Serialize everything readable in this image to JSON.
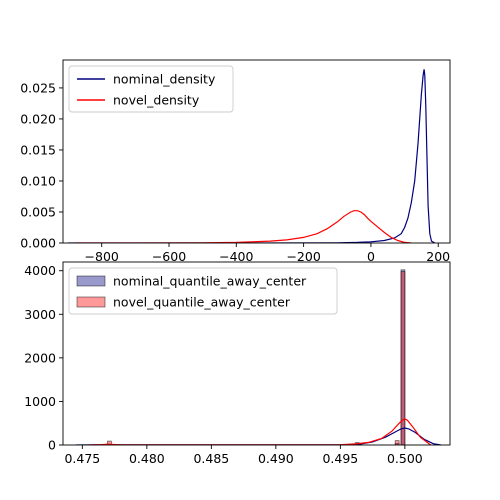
{
  "chart_data": [
    {
      "type": "line",
      "title": "",
      "xlabel": "",
      "ylabel": "",
      "xlim": [
        -915,
        235
      ],
      "ylim": [
        0,
        0.0295
      ],
      "xticks": [
        -800,
        -600,
        -400,
        -200,
        0,
        200
      ],
      "xtick_labels": [
        "−800",
        "−600",
        "−400",
        "−200",
        "0",
        "200"
      ],
      "yticks": [
        0,
        0.005,
        0.01,
        0.015,
        0.02,
        0.025
      ],
      "ytick_labels": [
        "0.000",
        "0.005",
        "0.010",
        "0.015",
        "0.020",
        "0.025"
      ],
      "grid": false,
      "legend": "upper-left",
      "series": [
        {
          "name": "nominal_density",
          "color": "#00007f",
          "x": [
            -900,
            -300,
            -100,
            -40,
            0,
            40,
            70,
            90,
            100,
            110,
            120,
            130,
            140,
            145,
            150,
            155,
            158,
            160,
            163,
            166,
            170,
            175,
            180,
            190
          ],
          "y": [
            0,
            0,
            3e-05,
            0.0001,
            0.0002,
            0.0004,
            0.0008,
            0.0015,
            0.0025,
            0.004,
            0.0065,
            0.01,
            0.016,
            0.02,
            0.024,
            0.027,
            0.028,
            0.027,
            0.022,
            0.015,
            0.006,
            0.0015,
            0.0003,
            0
          ]
        },
        {
          "name": "novel_density",
          "color": "#ff0000",
          "x": [
            -880,
            -700,
            -500,
            -400,
            -300,
            -250,
            -200,
            -160,
            -130,
            -100,
            -80,
            -60,
            -50,
            -40,
            -30,
            -20,
            -10,
            0,
            20,
            40,
            60,
            80,
            100,
            120
          ],
          "y": [
            0,
            0,
            3e-05,
            0.0001,
            0.0003,
            0.0005,
            0.0009,
            0.0015,
            0.0023,
            0.0034,
            0.0043,
            0.005,
            0.0052,
            0.0052,
            0.005,
            0.0046,
            0.004,
            0.0035,
            0.0026,
            0.0017,
            0.0009,
            0.0004,
            0.0001,
            0
          ]
        }
      ]
    },
    {
      "type": "bar",
      "title": "",
      "xlabel": "",
      "ylabel": "",
      "xlim": [
        0.4735,
        0.5035
      ],
      "ylim": [
        0,
        4200
      ],
      "xticks": [
        0.475,
        0.48,
        0.485,
        0.49,
        0.495,
        0.5
      ],
      "xtick_labels": [
        "0.475",
        "0.480",
        "0.485",
        "0.490",
        "0.495",
        "0.500"
      ],
      "yticks": [
        0,
        1000,
        2000,
        3000,
        4000
      ],
      "ytick_labels": [
        "0",
        "1000",
        "2000",
        "3000",
        "4000"
      ],
      "grid": false,
      "legend": "upper-left",
      "bin_width": 0.0003,
      "series": [
        {
          "name": "nominal_quantile_away_center",
          "color": "#00007f",
          "bins": [
            [
              0.4771,
              15
            ],
            [
              0.4963,
              10
            ],
            [
              0.4994,
              35
            ],
            [
              0.49985,
              4020
            ]
          ]
        },
        {
          "name": "novel_quantile_away_center",
          "color": "#ff0000",
          "bins": [
            [
              0.4771,
              90
            ],
            [
              0.4963,
              55
            ],
            [
              0.4994,
              100
            ],
            [
              0.49985,
              3980
            ]
          ]
        }
      ],
      "kde_lines": [
        {
          "color": "#00007f",
          "x": [
            0.4745,
            0.476,
            0.477,
            0.478,
            0.48,
            0.49,
            0.495,
            0.4965,
            0.4975,
            0.4985,
            0.4992,
            0.4997,
            0.5,
            0.5003,
            0.5008,
            0.5015,
            0.5022,
            0.5028
          ],
          "y": [
            0,
            3,
            8,
            4,
            2,
            2,
            5,
            20,
            70,
            180,
            290,
            370,
            390,
            370,
            290,
            130,
            30,
            0
          ]
        },
        {
          "color": "#ff0000",
          "x": [
            0.4755,
            0.4765,
            0.477,
            0.4778,
            0.479,
            0.49,
            0.495,
            0.4962,
            0.4972,
            0.4982,
            0.499,
            0.4995,
            0.4998,
            0.5,
            0.5002,
            0.5006,
            0.5012,
            0.502
          ],
          "y": [
            0,
            10,
            18,
            8,
            3,
            3,
            8,
            25,
            60,
            150,
            320,
            480,
            570,
            600,
            570,
            420,
            180,
            0
          ]
        }
      ]
    }
  ]
}
